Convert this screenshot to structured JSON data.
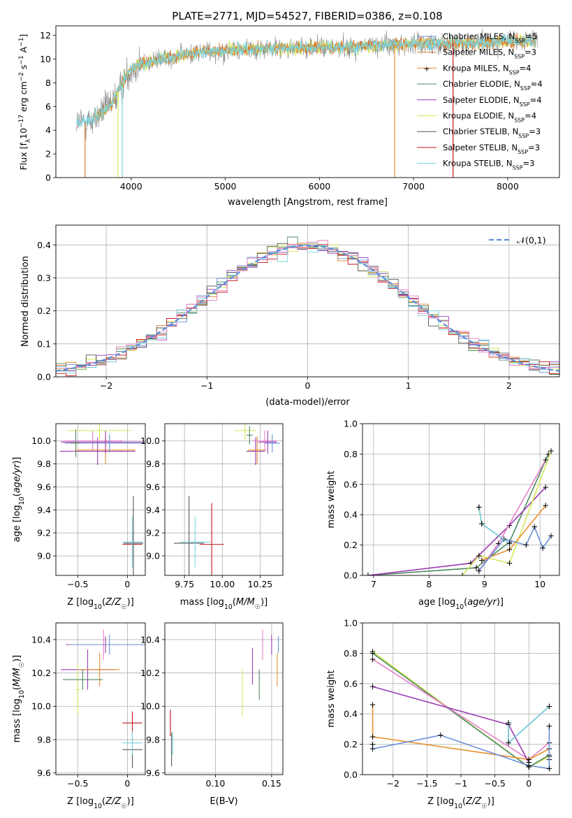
{
  "title": "PLATE=2771, MJD=54527, FIBERID=0386, z=0.108",
  "colors": {
    "Chabrier MILES": "#6b8fd8",
    "Salpeter MILES": "#e07b2a",
    "Kroupa MILES": "#e8902e",
    "Chabrier ELODIE": "#4f8a60",
    "Salpeter ELODIE": "#9b3bb5",
    "Kroupa ELODIE": "#d4e85a",
    "Chabrier STELIB": "#555555",
    "Salpeter STELIB": "#c4161c",
    "Kroupa STELIB": "#79d4e0",
    "pink": "#e57fc8",
    "grid": "#b0b0b0",
    "normal_curve": "#5b8fd9"
  },
  "chart_data": [
    {
      "panel": "spectrum",
      "type": "line",
      "xlabel": "wavelength [Angstrom, rest frame]",
      "ylabel": "Flux [f_λ 10^-17 erg cm^-2 s^-1 A^-1]",
      "xlim": [
        3200,
        8550
      ],
      "ylim": [
        0,
        12.8
      ],
      "xticks": [
        4000,
        5000,
        6000,
        7000,
        8000
      ],
      "yticks": [
        0,
        2,
        4,
        6,
        8,
        10,
        12
      ],
      "grid": false,
      "legend_position": "right",
      "legend": [
        {
          "label": "Chabrier MILES, N",
          "sub": "SSP",
          "tail": "=5",
          "color": "#6b8fd8",
          "marker": false
        },
        {
          "label": "Salpeter MILES, N",
          "sub": "SSP",
          "tail": "=3",
          "color": "#e07b2a",
          "marker": false
        },
        {
          "label": "Kroupa MILES, N",
          "sub": "SSP",
          "tail": "=4",
          "color": "#e8902e",
          "marker": true
        },
        {
          "label": "Chabrier ELODIE, N",
          "sub": "SSP",
          "tail": "=4",
          "color": "#4f8a60",
          "marker": false
        },
        {
          "label": "Salpeter ELODIE, N",
          "sub": "SSP",
          "tail": "=4",
          "color": "#9b3bb5",
          "marker": false
        },
        {
          "label": "Kroupa ELODIE, N",
          "sub": "SSP",
          "tail": "=4",
          "color": "#d4e85a",
          "marker": false
        },
        {
          "label": "Chabrier STELIB, N",
          "sub": "SSP",
          "tail": "=3",
          "color": "#555555",
          "marker": false
        },
        {
          "label": "Salpeter STELIB, N",
          "sub": "SSP",
          "tail": "=3",
          "color": "#c4161c",
          "marker": false
        },
        {
          "label": "Kroupa STELIB, N",
          "sub": "SSP",
          "tail": "=3",
          "color": "#79d4e0",
          "marker": false
        }
      ],
      "continuum": [
        [
          3420,
          4.6
        ],
        [
          3500,
          4.7
        ],
        [
          3600,
          4.9
        ],
        [
          3700,
          5.6
        ],
        [
          3800,
          6.3
        ],
        [
          3900,
          7.8
        ],
        [
          4000,
          9.2
        ],
        [
          4100,
          9.6
        ],
        [
          4300,
          9.9
        ],
        [
          4500,
          10.3
        ],
        [
          4800,
          10.6
        ],
        [
          5100,
          10.8
        ],
        [
          5500,
          10.9
        ],
        [
          5900,
          11.0
        ],
        [
          6300,
          11.0
        ],
        [
          6700,
          11.2
        ],
        [
          7000,
          11.3
        ],
        [
          7400,
          11.3
        ],
        [
          7800,
          11.4
        ],
        [
          8100,
          11.5
        ],
        [
          8300,
          11.5
        ]
      ],
      "data_noise_amplitude": 1.3,
      "model_noise_amplitude": 0.45,
      "dips": [
        {
          "color": "#e07b2a",
          "x": 3510,
          "to": 0
        },
        {
          "color": "#d4e85a",
          "x": 3860,
          "to": 0
        },
        {
          "color": "#79d4e0",
          "x": 3905,
          "to": 0
        },
        {
          "color": "#e8902e",
          "x": 6800,
          "to": 0
        },
        {
          "color": "#c4161c",
          "x": 7420,
          "to": 0
        }
      ]
    },
    {
      "panel": "residuals",
      "type": "histogram",
      "xlabel": "(data-model)/error",
      "ylabel": "Normed distribution",
      "xlim": [
        -2.5,
        2.5
      ],
      "ylim": [
        0,
        0.46
      ],
      "xticks": [
        -2,
        -1,
        0,
        1,
        2
      ],
      "yticks": [
        0.0,
        0.1,
        0.2,
        0.3,
        0.4
      ],
      "grid": true,
      "bin_width": 0.1,
      "legend": "𝒩(0,1)",
      "legend_position": "top-right"
    },
    {
      "panel": "age-vs-Z",
      "type": "scatter",
      "xlabel": "Z [log10(Z/Z☉)]",
      "ylabel": "age  [log10(age/yr)]",
      "xlim": [
        -0.72,
        0.18
      ],
      "ylim": [
        8.83,
        10.15
      ],
      "xticks": [
        -0.5,
        0.0
      ],
      "yticks": [
        9.0,
        9.2,
        9.4,
        9.6,
        9.8,
        10.0
      ],
      "grid": true,
      "points": [
        {
          "x": -0.3,
          "y": 9.91,
          "xerr": 0.38,
          "yerr": 0.12,
          "color": "#9b3bb5"
        },
        {
          "x": -0.22,
          "y": 9.92,
          "xerr": 0.3,
          "yerr": 0.12,
          "color": "#e8902e"
        },
        {
          "x": -0.35,
          "y": 10.0,
          "xerr": 0.3,
          "yerr": 0.09,
          "color": "#e57fc8"
        },
        {
          "x": -0.22,
          "y": 9.99,
          "xerr": 0.45,
          "yerr": 0.1,
          "color": "#9b3bb5"
        },
        {
          "x": -0.28,
          "y": 10.09,
          "xerr": 0.32,
          "yerr": 0.08,
          "color": "#d4e85a"
        },
        {
          "x": -0.18,
          "y": 9.98,
          "xerr": 0.45,
          "yerr": 0.08,
          "color": "#6b8fd8"
        },
        {
          "x": -0.52,
          "y": 9.98,
          "xerr": 0.05,
          "yerr": 0.12,
          "color": "#4f8a60"
        },
        {
          "x": 0.05,
          "y": 9.1,
          "xerr": 0.1,
          "yerr": 0.1,
          "color": "#c4161c"
        },
        {
          "x": 0.06,
          "y": 9.11,
          "xerr": 0.1,
          "yerr": 0.41,
          "color": "#555555"
        },
        {
          "x": 0.05,
          "y": 9.12,
          "xerr": 0.1,
          "yerr": 0.22,
          "color": "#79d4e0"
        }
      ]
    },
    {
      "panel": "age-vs-mass",
      "type": "scatter",
      "xlabel": "mass [log10(M/M☉)]",
      "ylabel": "",
      "xlim": [
        9.62,
        10.4
      ],
      "ylim": [
        8.83,
        10.15
      ],
      "xticks": [
        9.75,
        10.0,
        10.25
      ],
      "xtick_labels": [
        "9.75",
        "10.00",
        "10.25"
      ],
      "yticks": [
        9.0,
        9.2,
        9.4,
        9.6,
        9.8,
        10.0
      ],
      "grid": true,
      "points": [
        {
          "x": 10.22,
          "y": 9.91,
          "xerr": 0.06,
          "yerr": 0.12,
          "color": "#9b3bb5"
        },
        {
          "x": 10.23,
          "y": 9.92,
          "xerr": 0.06,
          "yerr": 0.12,
          "color": "#e8902e"
        },
        {
          "x": 10.28,
          "y": 10.0,
          "xerr": 0.08,
          "yerr": 0.09,
          "color": "#e57fc8"
        },
        {
          "x": 10.3,
          "y": 9.99,
          "xerr": 0.06,
          "yerr": 0.1,
          "color": "#9b3bb5"
        },
        {
          "x": 10.15,
          "y": 10.09,
          "xerr": 0.07,
          "yerr": 0.08,
          "color": "#d4e85a"
        },
        {
          "x": 10.33,
          "y": 9.98,
          "xerr": 0.05,
          "yerr": 0.08,
          "color": "#6b8fd8"
        },
        {
          "x": 10.18,
          "y": 10.05,
          "xerr": 0.02,
          "yerr": 0.08,
          "color": "#4f8a60"
        },
        {
          "x": 9.93,
          "y": 9.1,
          "xerr": 0.08,
          "yerr": 0.36,
          "color": "#c4161c"
        },
        {
          "x": 9.78,
          "y": 9.11,
          "xerr": 0.1,
          "yerr": 0.41,
          "color": "#555555"
        },
        {
          "x": 9.82,
          "y": 9.12,
          "xerr": 0.1,
          "yerr": 0.22,
          "color": "#79d4e0"
        }
      ]
    },
    {
      "panel": "weight-vs-age",
      "type": "line",
      "xlabel": "age  [log10(age/yr)]",
      "ylabel": "mass weight",
      "xlim": [
        6.8,
        10.35
      ],
      "ylim": [
        0,
        1.0
      ],
      "xticks": [
        7,
        8,
        9,
        10
      ],
      "yticks": [
        0.0,
        0.2,
        0.4,
        0.6,
        0.8,
        1.0
      ],
      "grid": true,
      "series": [
        {
          "color": "#4f8a60",
          "x": [
            6.9,
            8.85,
            9.45,
            10.15
          ],
          "y": [
            0.0,
            0.05,
            0.22,
            0.8
          ]
        },
        {
          "color": "#9b3bb5",
          "x": [
            6.9,
            8.75,
            9.45,
            10.1
          ],
          "y": [
            0.0,
            0.08,
            0.33,
            0.58
          ]
        },
        {
          "color": "#d4e85a",
          "x": [
            8.6,
            8.9,
            9.45,
            10.2
          ],
          "y": [
            0.0,
            0.13,
            0.08,
            0.82
          ]
        },
        {
          "color": "#e57fc8",
          "x": [
            8.9,
            9.25,
            10.1
          ],
          "y": [
            0.03,
            0.21,
            0.76
          ]
        },
        {
          "color": "#e8902e",
          "x": [
            8.95,
            9.45,
            10.1
          ],
          "y": [
            0.1,
            0.17,
            0.46
          ]
        },
        {
          "color": "#6b8fd8",
          "x": [
            8.9,
            9.35,
            9.75,
            9.9,
            10.05,
            10.2
          ],
          "y": [
            0.03,
            0.24,
            0.2,
            0.32,
            0.18,
            0.26
          ]
        },
        {
          "color": "#555555",
          "x": [
            8.9,
            8.95,
            9.45
          ],
          "y": [
            0.45,
            0.34,
            0.21
          ]
        },
        {
          "color": "#79d4e0",
          "x": [
            8.9,
            8.95,
            9.45
          ],
          "y": [
            0.45,
            0.34,
            0.21
          ]
        }
      ]
    },
    {
      "panel": "mass-vs-Z",
      "type": "scatter",
      "xlabel": "Z [log10(Z/Z☉)]",
      "ylabel": "mass [log10(M/M☉)]",
      "xlim": [
        -0.72,
        0.18
      ],
      "ylim": [
        9.59,
        10.5
      ],
      "xticks": [
        -0.5,
        0.0
      ],
      "yticks": [
        9.6,
        9.8,
        10.0,
        10.2,
        10.4
      ],
      "grid": true,
      "points": [
        {
          "x": -0.4,
          "y": 10.22,
          "xerr": 0.27,
          "yerr": 0.12,
          "color": "#9b3bb5"
        },
        {
          "x": -0.24,
          "y": 10.37,
          "xerr": 0.2,
          "yerr": 0.09,
          "color": "#e57fc8"
        },
        {
          "x": -0.22,
          "y": 10.37,
          "xerr": 0.4,
          "yerr": 0.05,
          "color": "#9b3bb5"
        },
        {
          "x": -0.28,
          "y": 10.22,
          "xerr": 0.2,
          "yerr": 0.1,
          "color": "#e8902e"
        },
        {
          "x": -0.5,
          "y": 10.1,
          "xerr": 0.02,
          "yerr": 0.15,
          "color": "#d4e85a"
        },
        {
          "x": -0.45,
          "y": 10.16,
          "xerr": 0.2,
          "yerr": 0.06,
          "color": "#4f8a60"
        },
        {
          "x": -0.18,
          "y": 10.37,
          "xerr": 0.4,
          "yerr": 0.06,
          "color": "#6b8fd8"
        },
        {
          "x": 0.05,
          "y": 9.9,
          "xerr": 0.1,
          "yerr": 0.07,
          "color": "#c4161c"
        },
        {
          "x": 0.05,
          "y": 9.74,
          "xerr": 0.1,
          "yerr": 0.11,
          "color": "#555555"
        },
        {
          "x": 0.05,
          "y": 9.78,
          "xerr": 0.1,
          "yerr": 0.07,
          "color": "#79d4e0"
        }
      ]
    },
    {
      "panel": "mass-vs-EBV",
      "type": "scatter",
      "xlabel": "E(B-V)",
      "ylabel": "",
      "xlim": [
        0.055,
        0.16
      ],
      "ylim": [
        9.59,
        10.5
      ],
      "xticks": [
        0.1,
        0.15
      ],
      "xtick_labels": [
        "0.10",
        "0.15"
      ],
      "yticks": [
        9.6,
        9.8,
        10.0,
        10.2,
        10.4
      ],
      "grid": true,
      "points": [
        {
          "x": 0.06,
          "y": 9.9,
          "xerr": 0,
          "yerr": 0.08,
          "color": "#c4161c"
        },
        {
          "x": 0.061,
          "y": 9.74,
          "xerr": 0,
          "yerr": 0.1,
          "color": "#555555"
        },
        {
          "x": 0.062,
          "y": 9.78,
          "xerr": 0,
          "yerr": 0.07,
          "color": "#79d4e0"
        },
        {
          "x": 0.124,
          "y": 10.08,
          "xerr": 0,
          "yerr": 0.14,
          "color": "#d4e85a"
        },
        {
          "x": 0.133,
          "y": 10.24,
          "xerr": 0,
          "yerr": 0.11,
          "color": "#9b3bb5"
        },
        {
          "x": 0.139,
          "y": 10.13,
          "xerr": 0,
          "yerr": 0.09,
          "color": "#4f8a60"
        },
        {
          "x": 0.142,
          "y": 10.37,
          "xerr": 0,
          "yerr": 0.09,
          "color": "#e57fc8"
        },
        {
          "x": 0.15,
          "y": 10.37,
          "xerr": 0,
          "yerr": 0.06,
          "color": "#9b3bb5"
        },
        {
          "x": 0.155,
          "y": 10.22,
          "xerr": 0,
          "yerr": 0.1,
          "color": "#e8902e"
        },
        {
          "x": 0.156,
          "y": 10.37,
          "xerr": 0,
          "yerr": 0.05,
          "color": "#6b8fd8"
        }
      ]
    },
    {
      "panel": "weight-vs-Z",
      "type": "line",
      "xlabel": "Z [log10(Z/Z☉)]",
      "ylabel": "mass weight",
      "xlim": [
        -2.45,
        0.45
      ],
      "ylim": [
        0,
        1.0
      ],
      "xticks": [
        -2.0,
        -1.5,
        -1.0,
        -0.5,
        0.0
      ],
      "yticks": [
        0.0,
        0.2,
        0.4,
        0.6,
        0.8,
        1.0
      ],
      "grid": true,
      "series": [
        {
          "color": "#d4e85a",
          "x": [
            -2.3,
            0.0,
            0.3
          ],
          "y": [
            0.81,
            0.05,
            0.12
          ]
        },
        {
          "color": "#4f8a60",
          "x": [
            -2.3,
            0.0,
            0.3
          ],
          "y": [
            0.8,
            0.05,
            0.13
          ]
        },
        {
          "color": "#e57fc8",
          "x": [
            -2.3,
            0.0,
            0.3
          ],
          "y": [
            0.76,
            0.1,
            0.21
          ]
        },
        {
          "color": "#9b3bb5",
          "x": [
            -2.3,
            -0.3,
            0.0
          ],
          "y": [
            0.58,
            0.33,
            0.08
          ]
        },
        {
          "color": "#e8902e",
          "x": [
            -2.3,
            -2.3,
            0.0,
            0.3,
            0.3
          ],
          "y": [
            0.46,
            0.25,
            0.1,
            0.17,
            0.1
          ]
        },
        {
          "color": "#6b8fd8",
          "x": [
            -2.3,
            -2.3,
            -1.3,
            0.0,
            0.3,
            0.3
          ],
          "y": [
            0.2,
            0.17,
            0.26,
            0.06,
            0.04,
            0.32
          ]
        },
        {
          "color": "#555555",
          "x": [
            -0.3,
            -0.3,
            0.3
          ],
          "y": [
            0.34,
            0.21,
            0.45
          ]
        },
        {
          "color": "#79d4e0",
          "x": [
            -0.3,
            -0.3,
            0.3
          ],
          "y": [
            0.34,
            0.21,
            0.45
          ]
        }
      ]
    }
  ]
}
